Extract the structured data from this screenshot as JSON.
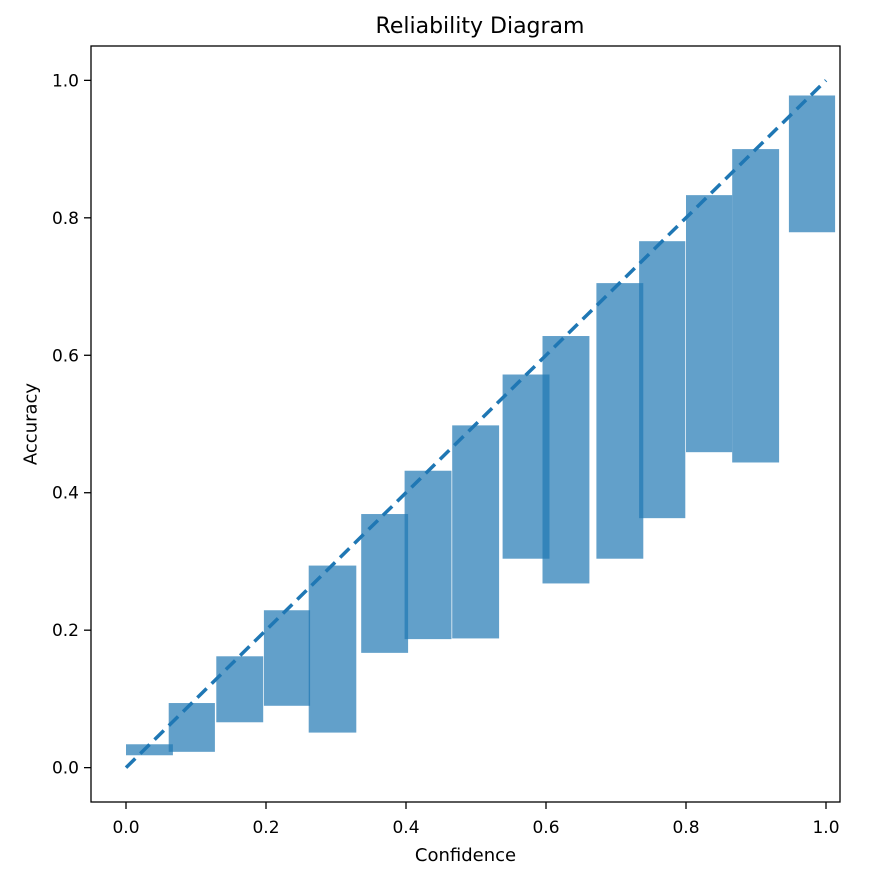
{
  "chart_data": {
    "type": "bar",
    "title": "Reliability Diagram",
    "xlabel": "Confidence",
    "ylabel": "Accuracy",
    "xlim": [
      -0.05,
      1.02
    ],
    "ylim": [
      -0.05,
      1.05
    ],
    "xticks": [
      "0.0",
      "0.2",
      "0.4",
      "0.6",
      "0.8",
      "1.0"
    ],
    "yticks": [
      "0.0",
      "0.2",
      "0.4",
      "0.6",
      "0.8",
      "1.0"
    ],
    "grid": false,
    "bar_color": "#1f77b4",
    "bar_opacity": 0.7,
    "diagonal_color": "#1f77b4",
    "bars": [
      {
        "x_start": 0.0,
        "x_end": 0.067,
        "y_low": 0.018,
        "y_high": 0.034
      },
      {
        "x_start": 0.061,
        "x_end": 0.127,
        "y_low": 0.023,
        "y_high": 0.094
      },
      {
        "x_start": 0.129,
        "x_end": 0.196,
        "y_low": 0.066,
        "y_high": 0.162
      },
      {
        "x_start": 0.197,
        "x_end": 0.263,
        "y_low": 0.09,
        "y_high": 0.229
      },
      {
        "x_start": 0.261,
        "x_end": 0.329,
        "y_low": 0.051,
        "y_high": 0.294
      },
      {
        "x_start": 0.336,
        "x_end": 0.403,
        "y_low": 0.167,
        "y_high": 0.369
      },
      {
        "x_start": 0.398,
        "x_end": 0.465,
        "y_low": 0.187,
        "y_high": 0.432
      },
      {
        "x_start": 0.466,
        "x_end": 0.533,
        "y_low": 0.188,
        "y_high": 0.498
      },
      {
        "x_start": 0.538,
        "x_end": 0.605,
        "y_low": 0.304,
        "y_high": 0.572
      },
      {
        "x_start": 0.595,
        "x_end": 0.662,
        "y_low": 0.268,
        "y_high": 0.628
      },
      {
        "x_start": 0.672,
        "x_end": 0.739,
        "y_low": 0.304,
        "y_high": 0.705
      },
      {
        "x_start": 0.733,
        "x_end": 0.799,
        "y_low": 0.363,
        "y_high": 0.766
      },
      {
        "x_start": 0.8,
        "x_end": 0.866,
        "y_low": 0.459,
        "y_high": 0.833
      },
      {
        "x_start": 0.866,
        "x_end": 0.933,
        "y_low": 0.444,
        "y_high": 0.9
      },
      {
        "x_start": 0.947,
        "x_end": 1.013,
        "y_low": 0.779,
        "y_high": 0.978
      }
    ],
    "diagonal": {
      "x": [
        0,
        1
      ],
      "y": [
        0,
        1
      ]
    }
  }
}
